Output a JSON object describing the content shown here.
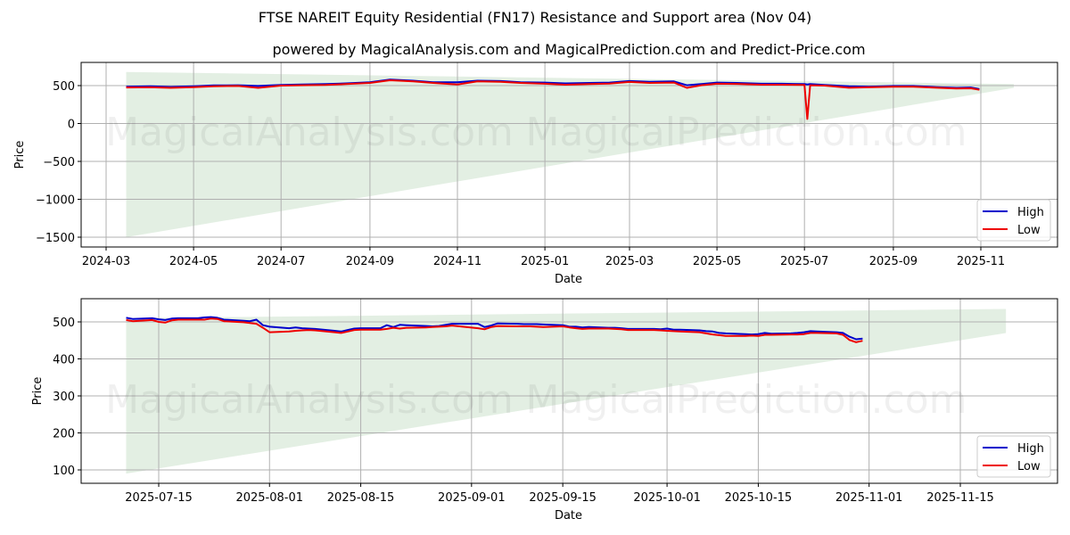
{
  "header": {
    "title": "FTSE NAREIT Equity Residential (FN17) Resistance and Support area (Nov 04)",
    "subtitle": "powered by MagicalAnalysis.com and MagicalPrediction.com and Predict-Price.com"
  },
  "watermarks": [
    "MagicalAnalysis.com",
    "MagicalPrediction.com"
  ],
  "colors": {
    "high": "#0000cc",
    "low": "#ee0000",
    "band": "#d9ead9",
    "grid": "#b0b0b0"
  },
  "chart_data": [
    {
      "type": "line",
      "title": "FTSE NAREIT Equity Residential (FN17) Resistance and Support area (Nov 04)",
      "xlabel": "Date",
      "ylabel": "Price",
      "ylim": [
        -1600,
        800
      ],
      "grid": true,
      "legend_position": "lower right",
      "x_ticks": [
        "2024-03",
        "2024-05",
        "2024-07",
        "2024-09",
        "2024-11",
        "2025-01",
        "2025-03",
        "2025-05",
        "2025-07",
        "2025-09",
        "2025-11"
      ],
      "y_ticks": [
        500,
        0,
        -500,
        -1000,
        -1500
      ],
      "support_resistance_band": {
        "x_start": "2024-03-15",
        "x_end": "2025-11-24",
        "upper_start": 680,
        "upper_end": 520,
        "lower_start": -1500,
        "lower_end": 470
      },
      "x": [
        "2024-03-15",
        "2024-04-01",
        "2024-04-15",
        "2024-05-01",
        "2024-05-15",
        "2024-06-01",
        "2024-06-15",
        "2024-07-01",
        "2024-07-15",
        "2024-08-01",
        "2024-08-15",
        "2024-09-01",
        "2024-09-15",
        "2024-10-01",
        "2024-10-15",
        "2024-11-01",
        "2024-11-15",
        "2024-12-01",
        "2024-12-15",
        "2025-01-01",
        "2025-01-15",
        "2025-02-01",
        "2025-02-15",
        "2025-03-01",
        "2025-03-15",
        "2025-04-01",
        "2025-04-10",
        "2025-04-20",
        "2025-05-01",
        "2025-05-15",
        "2025-06-01",
        "2025-06-15",
        "2025-07-01",
        "2025-07-03",
        "2025-07-05",
        "2025-07-15",
        "2025-08-01",
        "2025-08-15",
        "2025-09-01",
        "2025-09-15",
        "2025-10-01",
        "2025-10-15",
        "2025-10-25",
        "2025-10-31"
      ],
      "series": [
        {
          "name": "High",
          "values": [
            485,
            490,
            482,
            490,
            502,
            505,
            495,
            510,
            515,
            520,
            530,
            545,
            580,
            565,
            545,
            545,
            565,
            560,
            545,
            540,
            530,
            535,
            540,
            560,
            550,
            555,
            505,
            520,
            540,
            535,
            525,
            525,
            520,
            515,
            520,
            508,
            490,
            485,
            495,
            495,
            480,
            470,
            475,
            455
          ]
        },
        {
          "name": "Low",
          "values": [
            475,
            478,
            470,
            480,
            492,
            495,
            470,
            500,
            505,
            508,
            520,
            535,
            570,
            555,
            535,
            515,
            555,
            550,
            535,
            525,
            512,
            520,
            527,
            548,
            535,
            540,
            470,
            505,
            525,
            522,
            512,
            512,
            510,
            60,
            505,
            500,
            472,
            478,
            485,
            485,
            472,
            462,
            465,
            445
          ]
        }
      ]
    },
    {
      "type": "line",
      "xlabel": "Date",
      "ylabel": "Price",
      "ylim": [
        65,
        565
      ],
      "grid": true,
      "legend_position": "lower right",
      "x_ticks": [
        "2025-07-15",
        "2025-08-01",
        "2025-08-15",
        "2025-09-01",
        "2025-09-15",
        "2025-10-01",
        "2025-10-15",
        "2025-11-01",
        "2025-11-15"
      ],
      "y_ticks": [
        500,
        400,
        300,
        200,
        100
      ],
      "support_resistance_band": {
        "x_start": "2025-07-10",
        "x_end": "2025-11-22",
        "upper_start": 510,
        "upper_end": 535,
        "lower_start": 90,
        "lower_end": 470
      },
      "x": [
        "2025-07-10",
        "2025-07-11",
        "2025-07-14",
        "2025-07-15",
        "2025-07-16",
        "2025-07-17",
        "2025-07-18",
        "2025-07-21",
        "2025-07-22",
        "2025-07-23",
        "2025-07-24",
        "2025-07-25",
        "2025-07-28",
        "2025-07-29",
        "2025-07-30",
        "2025-07-31",
        "2025-08-01",
        "2025-08-04",
        "2025-08-05",
        "2025-08-06",
        "2025-08-07",
        "2025-08-08",
        "2025-08-11",
        "2025-08-12",
        "2025-08-13",
        "2025-08-14",
        "2025-08-15",
        "2025-08-18",
        "2025-08-19",
        "2025-08-20",
        "2025-08-21",
        "2025-08-22",
        "2025-08-25",
        "2025-08-26",
        "2025-08-27",
        "2025-08-28",
        "2025-08-29",
        "2025-09-02",
        "2025-09-03",
        "2025-09-04",
        "2025-09-05",
        "2025-09-08",
        "2025-09-09",
        "2025-09-10",
        "2025-09-11",
        "2025-09-12",
        "2025-09-15",
        "2025-09-16",
        "2025-09-17",
        "2025-09-18",
        "2025-09-19",
        "2025-09-22",
        "2025-09-23",
        "2025-09-24",
        "2025-09-25",
        "2025-09-26",
        "2025-09-29",
        "2025-09-30",
        "2025-10-01",
        "2025-10-02",
        "2025-10-03",
        "2025-10-06",
        "2025-10-07",
        "2025-10-08",
        "2025-10-09",
        "2025-10-10",
        "2025-10-13",
        "2025-10-14",
        "2025-10-15",
        "2025-10-16",
        "2025-10-17",
        "2025-10-20",
        "2025-10-21",
        "2025-10-22",
        "2025-10-23",
        "2025-10-24",
        "2025-10-27",
        "2025-10-28",
        "2025-10-29",
        "2025-10-30",
        "2025-10-31"
      ],
      "series": [
        {
          "name": "High",
          "values": [
            511,
            508,
            510,
            507,
            505,
            509,
            510,
            510,
            512,
            513,
            511,
            506,
            503,
            502,
            506,
            491,
            487,
            483,
            485,
            483,
            482,
            481,
            476,
            474,
            478,
            482,
            483,
            483,
            491,
            486,
            492,
            491,
            489,
            488,
            489,
            492,
            495,
            495,
            486,
            490,
            496,
            495,
            494,
            494,
            494,
            493,
            491,
            487,
            487,
            485,
            486,
            484,
            484,
            483,
            481,
            481,
            481,
            480,
            482,
            479,
            479,
            477,
            475,
            474,
            470,
            469,
            467,
            466,
            467,
            470,
            468,
            469,
            470,
            472,
            475,
            474,
            472,
            470,
            460,
            453,
            455
          ]
        },
        {
          "name": "Low",
          "values": [
            505,
            502,
            505,
            500,
            498,
            504,
            506,
            506,
            506,
            509,
            508,
            502,
            499,
            497,
            495,
            484,
            472,
            474,
            476,
            477,
            478,
            477,
            472,
            470,
            474,
            478,
            479,
            479,
            481,
            484,
            482,
            484,
            485,
            486,
            487,
            488,
            490,
            483,
            480,
            486,
            489,
            488,
            488,
            488,
            487,
            486,
            488,
            485,
            483,
            481,
            482,
            482,
            481,
            480,
            478,
            478,
            478,
            477,
            476,
            475,
            474,
            472,
            469,
            466,
            464,
            462,
            462,
            463,
            462,
            465,
            465,
            466,
            466,
            467,
            470,
            470,
            469,
            465,
            451,
            445,
            449
          ]
        }
      ]
    }
  ]
}
